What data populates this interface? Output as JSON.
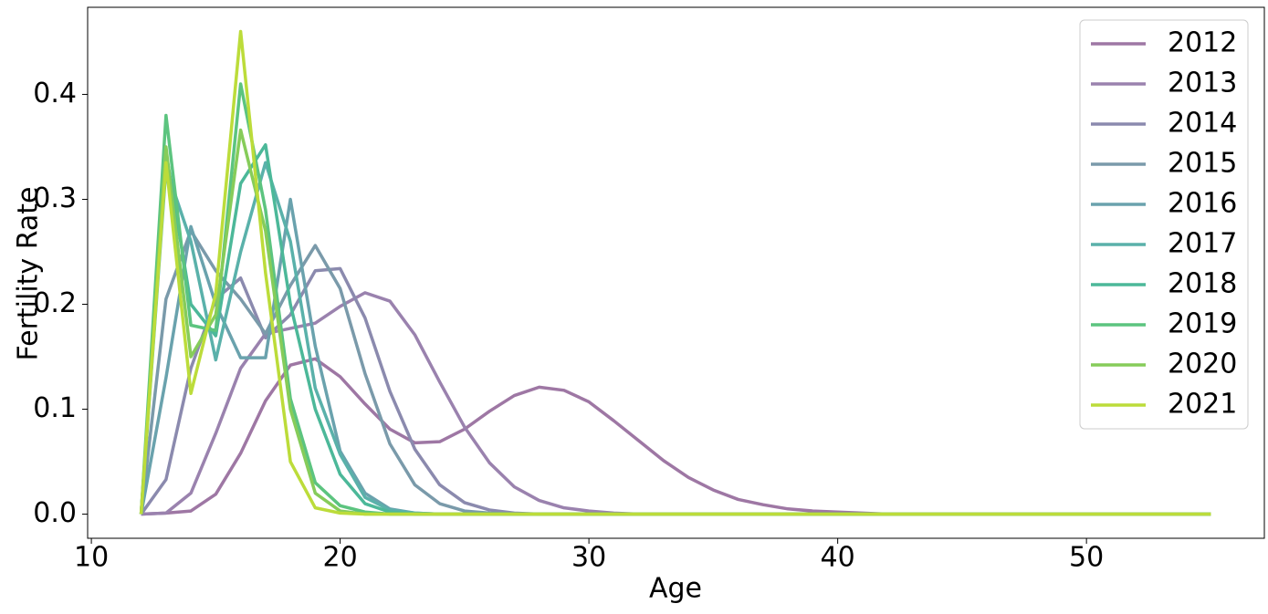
{
  "chart_data": {
    "type": "line",
    "xlabel": "Age",
    "ylabel": "Fertility Rate",
    "x": [
      12,
      13,
      14,
      15,
      16,
      17,
      18,
      19,
      20,
      21,
      22,
      23,
      24,
      25,
      26,
      27,
      28,
      29,
      30,
      31,
      32,
      33,
      34,
      35,
      36,
      37,
      38,
      39,
      40,
      41,
      42,
      43,
      44,
      45,
      46,
      47,
      48,
      49,
      50,
      51,
      52,
      53,
      54,
      55
    ],
    "series": [
      {
        "name": "2012",
        "color": "#9e77a4",
        "values": [
          0,
          0.001,
          0.003,
          0.019,
          0.058,
          0.108,
          0.142,
          0.148,
          0.131,
          0.105,
          0.081,
          0.068,
          0.069,
          0.081,
          0.098,
          0.113,
          0.121,
          0.118,
          0.107,
          0.089,
          0.07,
          0.051,
          0.035,
          0.023,
          0.014,
          0.009,
          0.005,
          0.003,
          0.002,
          0.001,
          0,
          0,
          0,
          0,
          0,
          0,
          0,
          0,
          0,
          0,
          0,
          0,
          0,
          0
        ]
      },
      {
        "name": "2013",
        "color": "#9a82ae",
        "values": [
          0,
          0.001,
          0.02,
          0.077,
          0.139,
          0.172,
          0.177,
          0.182,
          0.198,
          0.211,
          0.203,
          0.171,
          0.126,
          0.083,
          0.049,
          0.026,
          0.013,
          0.006,
          0.003,
          0.001,
          0,
          0,
          0,
          0,
          0,
          0,
          0,
          0,
          0,
          0,
          0,
          0,
          0,
          0,
          0,
          0,
          0,
          0,
          0,
          0,
          0,
          0,
          0,
          0
        ]
      },
      {
        "name": "2014",
        "color": "#8b8aae",
        "values": [
          0,
          0.033,
          0.139,
          0.205,
          0.225,
          0.168,
          0.19,
          0.232,
          0.234,
          0.187,
          0.117,
          0.062,
          0.028,
          0.011,
          0.004,
          0.001,
          0,
          0,
          0,
          0,
          0,
          0,
          0,
          0,
          0,
          0,
          0,
          0,
          0,
          0,
          0,
          0,
          0,
          0,
          0,
          0,
          0,
          0,
          0,
          0,
          0,
          0,
          0,
          0
        ]
      },
      {
        "name": "2015",
        "color": "#7a9aaa",
        "values": [
          0,
          0.205,
          0.27,
          0.232,
          0.205,
          0.172,
          0.218,
          0.256,
          0.215,
          0.134,
          0.067,
          0.028,
          0.01,
          0.003,
          0.001,
          0,
          0,
          0,
          0,
          0,
          0,
          0,
          0,
          0,
          0,
          0,
          0,
          0,
          0,
          0,
          0,
          0,
          0,
          0,
          0,
          0,
          0,
          0,
          0,
          0,
          0,
          0,
          0,
          0
        ]
      },
      {
        "name": "2016",
        "color": "#6aa2ad",
        "values": [
          0,
          0.13,
          0.274,
          0.2,
          0.149,
          0.149,
          0.3,
          0.16,
          0.06,
          0.02,
          0.005,
          0.001,
          0,
          0,
          0,
          0,
          0,
          0,
          0,
          0,
          0,
          0,
          0,
          0,
          0,
          0,
          0,
          0,
          0,
          0,
          0,
          0,
          0,
          0,
          0,
          0,
          0,
          0,
          0,
          0,
          0,
          0,
          0,
          0
        ]
      },
      {
        "name": "2017",
        "color": "#5ab1aa",
        "values": [
          0,
          0.33,
          0.26,
          0.147,
          0.25,
          0.335,
          0.26,
          0.12,
          0.057,
          0.016,
          0.004,
          0.001,
          0,
          0,
          0,
          0,
          0,
          0,
          0,
          0,
          0,
          0,
          0,
          0,
          0,
          0,
          0,
          0,
          0,
          0,
          0,
          0,
          0,
          0,
          0,
          0,
          0,
          0,
          0,
          0,
          0,
          0,
          0,
          0
        ]
      },
      {
        "name": "2018",
        "color": "#4cb899",
        "values": [
          0,
          0.345,
          0.2,
          0.17,
          0.315,
          0.352,
          0.2,
          0.1,
          0.038,
          0.01,
          0.002,
          0,
          0,
          0,
          0,
          0,
          0,
          0,
          0,
          0,
          0,
          0,
          0,
          0,
          0,
          0,
          0,
          0,
          0,
          0,
          0,
          0,
          0,
          0,
          0,
          0,
          0,
          0,
          0,
          0,
          0,
          0,
          0,
          0
        ]
      },
      {
        "name": "2019",
        "color": "#5cc47f",
        "values": [
          0,
          0.38,
          0.18,
          0.175,
          0.41,
          0.29,
          0.11,
          0.03,
          0.008,
          0.002,
          0,
          0,
          0,
          0,
          0,
          0,
          0,
          0,
          0,
          0,
          0,
          0,
          0,
          0,
          0,
          0,
          0,
          0,
          0,
          0,
          0,
          0,
          0,
          0,
          0,
          0,
          0,
          0,
          0,
          0,
          0,
          0,
          0,
          0
        ]
      },
      {
        "name": "2020",
        "color": "#86cc5a",
        "values": [
          0,
          0.35,
          0.15,
          0.19,
          0.366,
          0.27,
          0.1,
          0.02,
          0.003,
          0,
          0,
          0,
          0,
          0,
          0,
          0,
          0,
          0,
          0,
          0,
          0,
          0,
          0,
          0,
          0,
          0,
          0,
          0,
          0,
          0,
          0,
          0,
          0,
          0,
          0,
          0,
          0,
          0,
          0,
          0,
          0,
          0,
          0,
          0
        ]
      },
      {
        "name": "2021",
        "color": "#bcdc3a",
        "values": [
          0,
          0.335,
          0.115,
          0.21,
          0.46,
          0.23,
          0.05,
          0.006,
          0.001,
          0,
          0,
          0,
          0,
          0,
          0,
          0,
          0,
          0,
          0,
          0,
          0,
          0,
          0,
          0,
          0,
          0,
          0,
          0,
          0,
          0,
          0,
          0,
          0,
          0,
          0,
          0,
          0,
          0,
          0,
          0,
          0,
          0,
          0,
          0
        ]
      }
    ],
    "xlim": [
      9.85,
      57.15
    ],
    "xticks": [
      10,
      20,
      30,
      40,
      50
    ],
    "ylim": [
      -0.023,
      0.483
    ],
    "yticks": [
      {
        "value": 0,
        "label": "0.0"
      },
      0.1,
      0.2,
      0.3,
      0.4
    ],
    "grid": false,
    "legend": "upper right"
  }
}
